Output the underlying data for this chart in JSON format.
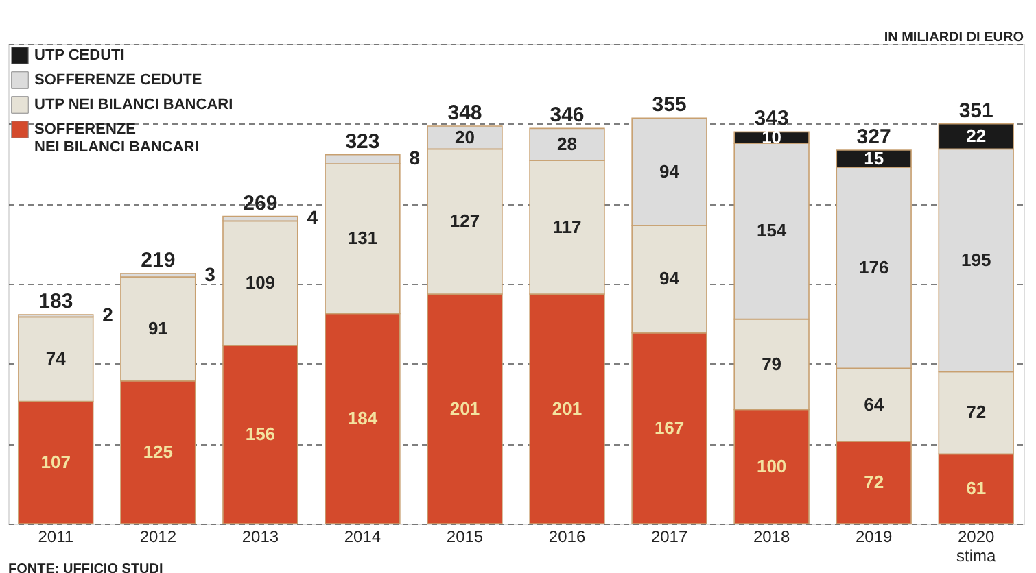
{
  "chart_data": {
    "type": "bar",
    "stacked": true,
    "subtitle": "IN MILIARDI DI EURO",
    "categories": [
      "2011",
      "2012",
      "2013",
      "2014",
      "2015",
      "2016",
      "2017",
      "2018",
      "2019",
      "2020\nstima"
    ],
    "series": [
      {
        "name": "SOFFERENZE NEI BILANCI BANCARI",
        "color": "#d44a2c",
        "values": [
          107,
          125,
          156,
          184,
          201,
          201,
          167,
          100,
          72,
          61
        ]
      },
      {
        "name": "UTP NEI BILANCI BANCARI",
        "color": "#e6e2d6",
        "values": [
          74,
          91,
          109,
          131,
          127,
          117,
          94,
          79,
          64,
          72
        ]
      },
      {
        "name": "SOFFERENZE CEDUTE",
        "color": "#dcdcdc",
        "values": [
          2,
          3,
          4,
          8,
          20,
          28,
          94,
          154,
          176,
          195
        ]
      },
      {
        "name": "UTP CEDUTI",
        "color": "#1a1a1a",
        "values": [
          null,
          null,
          null,
          null,
          null,
          null,
          null,
          10,
          15,
          22
        ]
      }
    ],
    "totals": [
      "183",
      "219",
      "269",
      "323",
      "348",
      "346",
      "355",
      "343",
      "327",
      "351"
    ],
    "data_labels": true,
    "ylim": [
      0,
      420
    ],
    "yticks": [
      {
        "value": 0,
        "label": null
      },
      {
        "value": 70,
        "label": null
      },
      {
        "value": 140,
        "label": null
      },
      {
        "value": 210,
        "label": null
      },
      {
        "value": 280,
        "label": null
      },
      {
        "value": 350,
        "label": null
      },
      {
        "value": 420,
        "label": null
      }
    ],
    "grid": "y",
    "tick_labels": "x",
    "legend": "top left",
    "annotations": [
      "FONTE: UFFICIO STUDI"
    ]
  }
}
